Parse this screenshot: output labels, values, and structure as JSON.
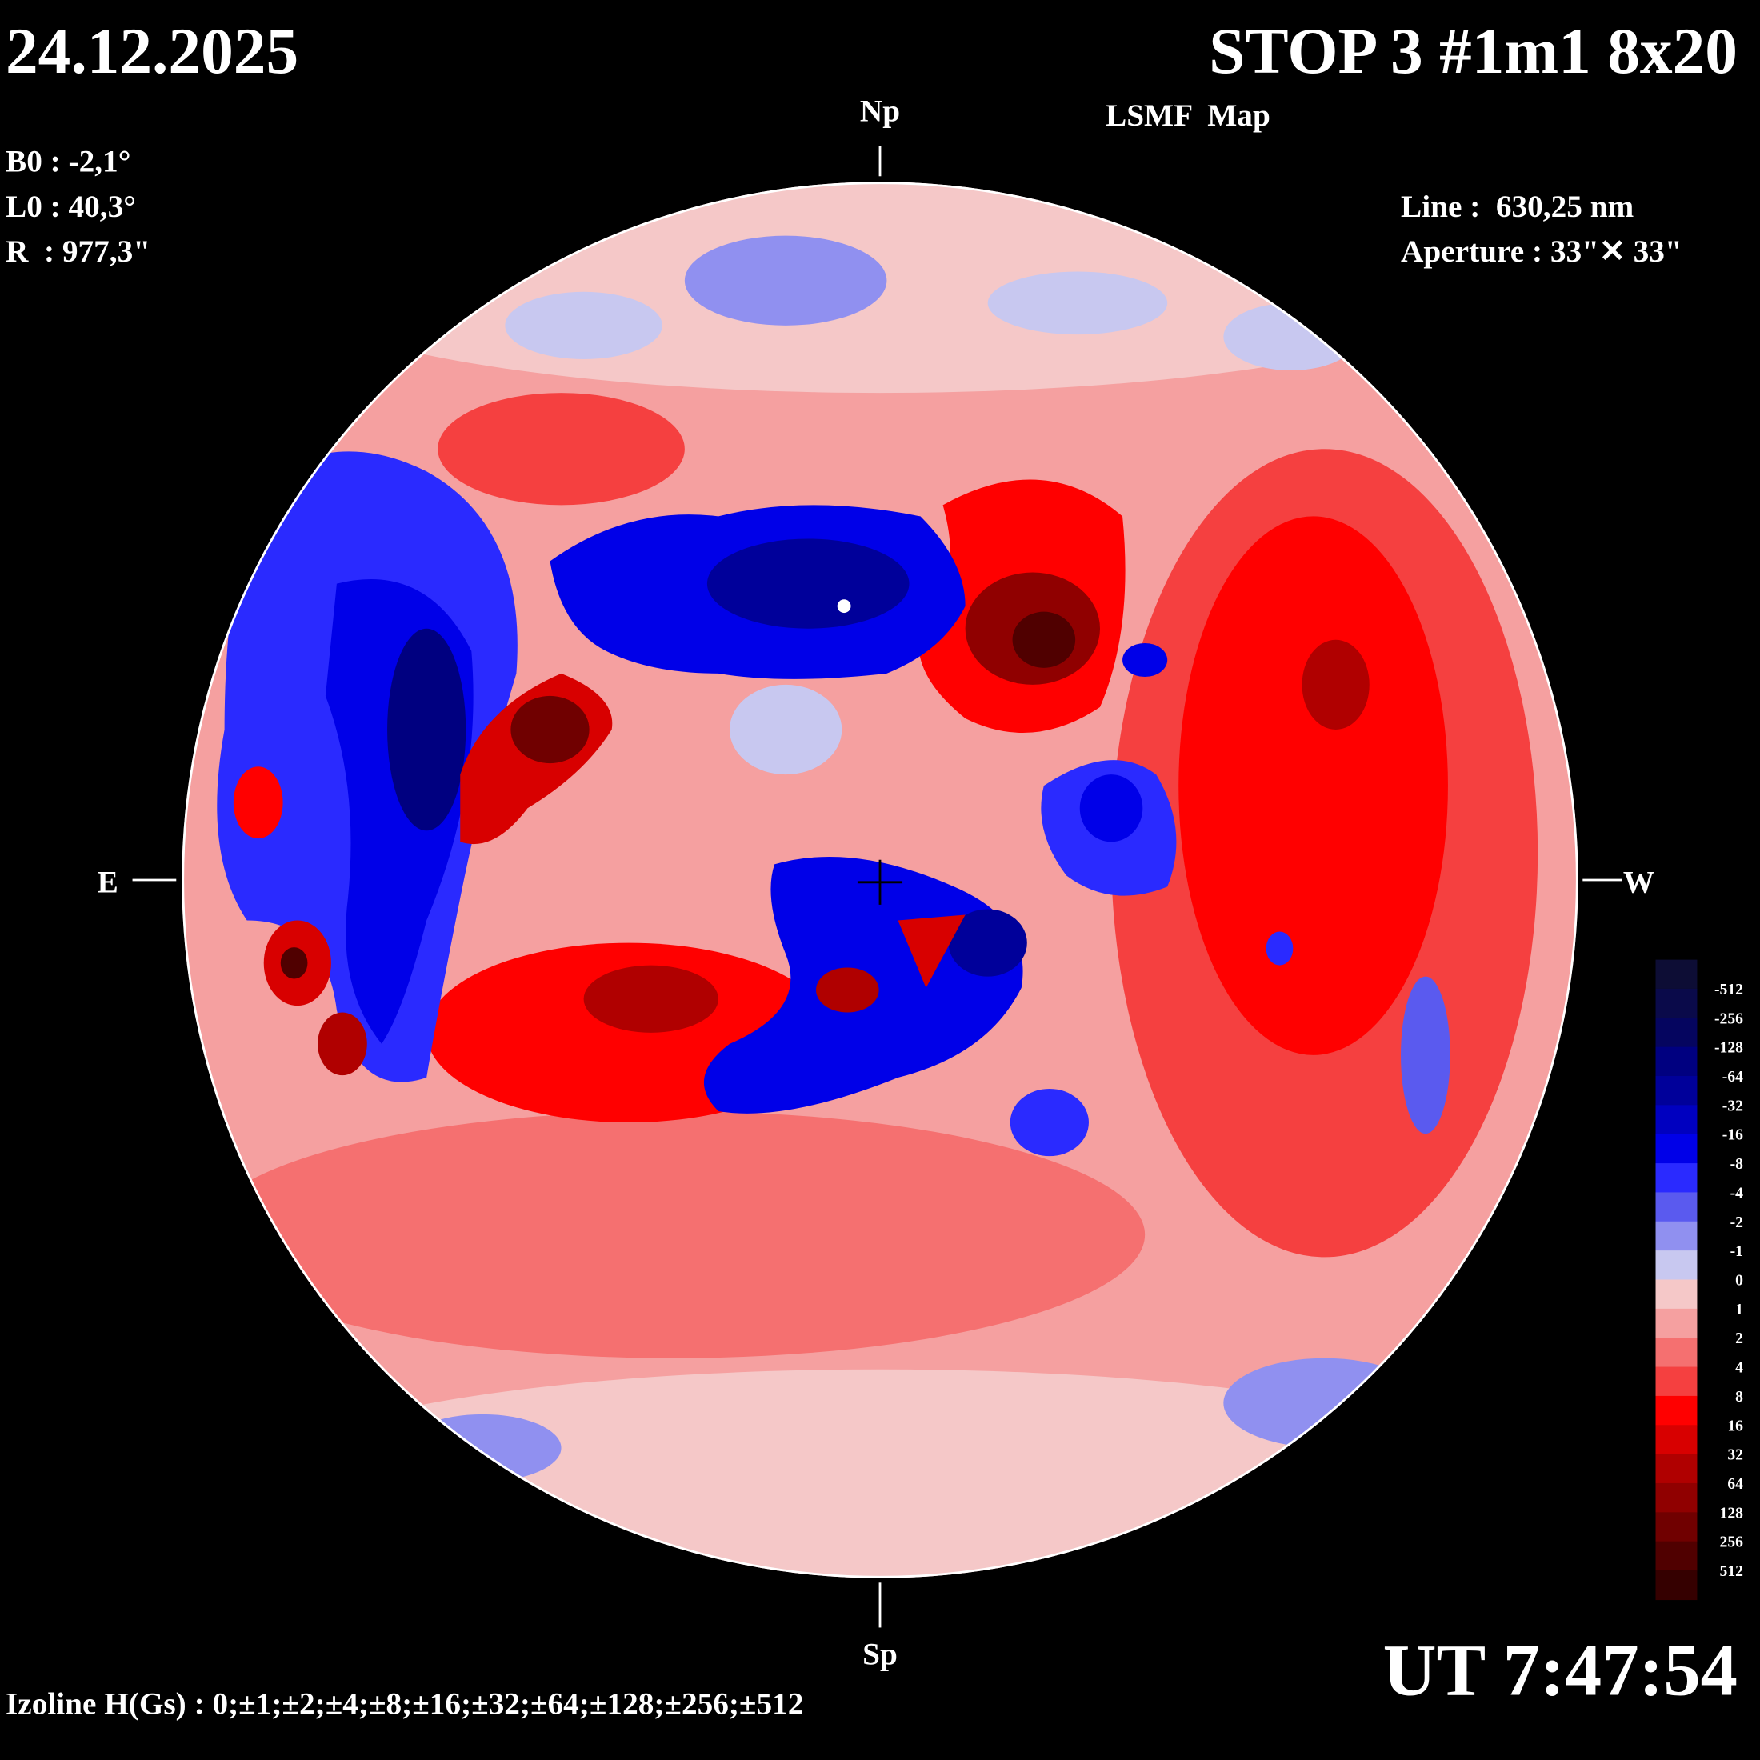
{
  "header": {
    "date": "24.12.2025",
    "title": "STOP 3 #1m1 8x20",
    "subtitle": "LSMF  Map"
  },
  "parameters": {
    "b0": "B0 : -2,1°",
    "l0": "L0 : 40,3°",
    "radius": "R  : 977,3\"",
    "line": "Line :  630,25 nm",
    "aperture": "Aperture : 33\"✕ 33\""
  },
  "directions": {
    "north": "Np",
    "south": "Sp",
    "east": "E",
    "west": "W"
  },
  "time": "UT 7:47:54",
  "izoline": "Izoline H(Gs) : 0;±1;±2;±4;±8;±16;±32;±64;±128;±256;±512",
  "colorbar": {
    "levels": [
      -512,
      -256,
      -128,
      -64,
      -32,
      -16,
      -8,
      -4,
      -2,
      -1,
      0,
      1,
      2,
      4,
      8,
      16,
      32,
      64,
      128,
      256,
      512
    ],
    "colors": [
      "#0d0d35",
      "#0a0a4a",
      "#05055f",
      "#000080",
      "#00009a",
      "#0000c0",
      "#0000e8",
      "#2a2aff",
      "#5a5aef",
      "#9090f0",
      "#c8c8f0",
      "#f5c8c8",
      "#f5a0a0",
      "#f57070",
      "#f54040",
      "#ff0000",
      "#d80000",
      "#b00000",
      "#900000",
      "#700000",
      "#500000",
      "#350000"
    ]
  }
}
